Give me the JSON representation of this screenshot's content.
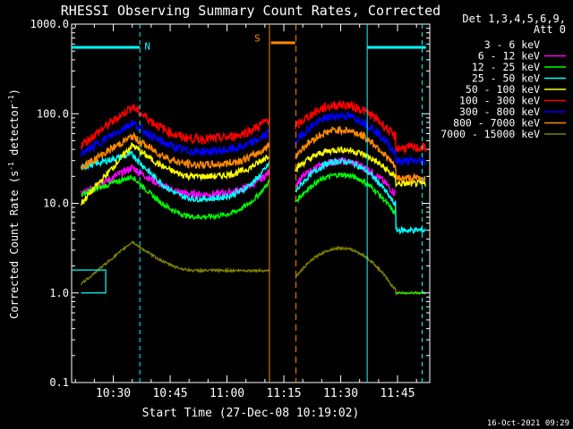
{
  "chart_data": {
    "type": "line",
    "title": "RHESSI Observing Summary Count Rates, Corrected",
    "xlabel": "Start Time (27-Dec-08 10:19:02)",
    "ylabel_main": "Corrected Count Rate (s",
    "ylabel_sup1": "-1",
    "ylabel_mid": " detector",
    "ylabel_sup2": "-1",
    "ylabel_end": ")",
    "y_scale": "log",
    "ylim": [
      0.1,
      1000
    ],
    "xlim_min": [
      19.0,
      82.0
    ],
    "y_ticks": [
      {
        "v": 0.1,
        "label": "0.1"
      },
      {
        "v": 1,
        "label": "1.0"
      },
      {
        "v": 10,
        "label": "10.0"
      },
      {
        "v": 100,
        "label": "100.0"
      },
      {
        "v": 1000,
        "label": "1000.0"
      }
    ],
    "x_ticks": [
      {
        "v": 30,
        "label": "10:30"
      },
      {
        "v": 45,
        "label": "10:45"
      },
      {
        "v": 60,
        "label": "11:00"
      },
      {
        "v": 75,
        "label": "11:15"
      },
      {
        "v": 90,
        "label": "11:30"
      },
      {
        "v": 105,
        "label": "11:45"
      }
    ],
    "detector_header": [
      "Det 1,3,4,5,6,9,",
      "Att 0"
    ],
    "series": [
      {
        "name": "3 - 6 keV",
        "color": "#000000",
        "level": 0.65
      },
      {
        "name": "6 - 12 keV",
        "color": "#ff00ff",
        "level": 1.4
      },
      {
        "name": "12 - 25 keV",
        "color": "#00ff00",
        "level": 0.95
      },
      {
        "name": "25 - 50 keV",
        "color": "#00ffff",
        "level": 1.15
      },
      {
        "name": "50 - 100 keV",
        "color": "#ffff00",
        "level": 1.25
      },
      {
        "name": "100 - 300 keV",
        "color": "#ff0000",
        "level": 1.75
      },
      {
        "name": "300 - 800 keV",
        "color": "#0000ff",
        "level": 1.58
      },
      {
        "name": "800 - 7000 keV",
        "color": "#ff8800",
        "level": 1.45
      },
      {
        "name": "7000 - 15000 keV",
        "color": "#808000",
        "level": 0.45
      }
    ],
    "markers": {
      "N_label": "N",
      "S_label": "S",
      "night_color": "#00ffff",
      "saa_color": "#ff8800"
    },
    "footer_date": "16-Oct-2021 09:29"
  }
}
